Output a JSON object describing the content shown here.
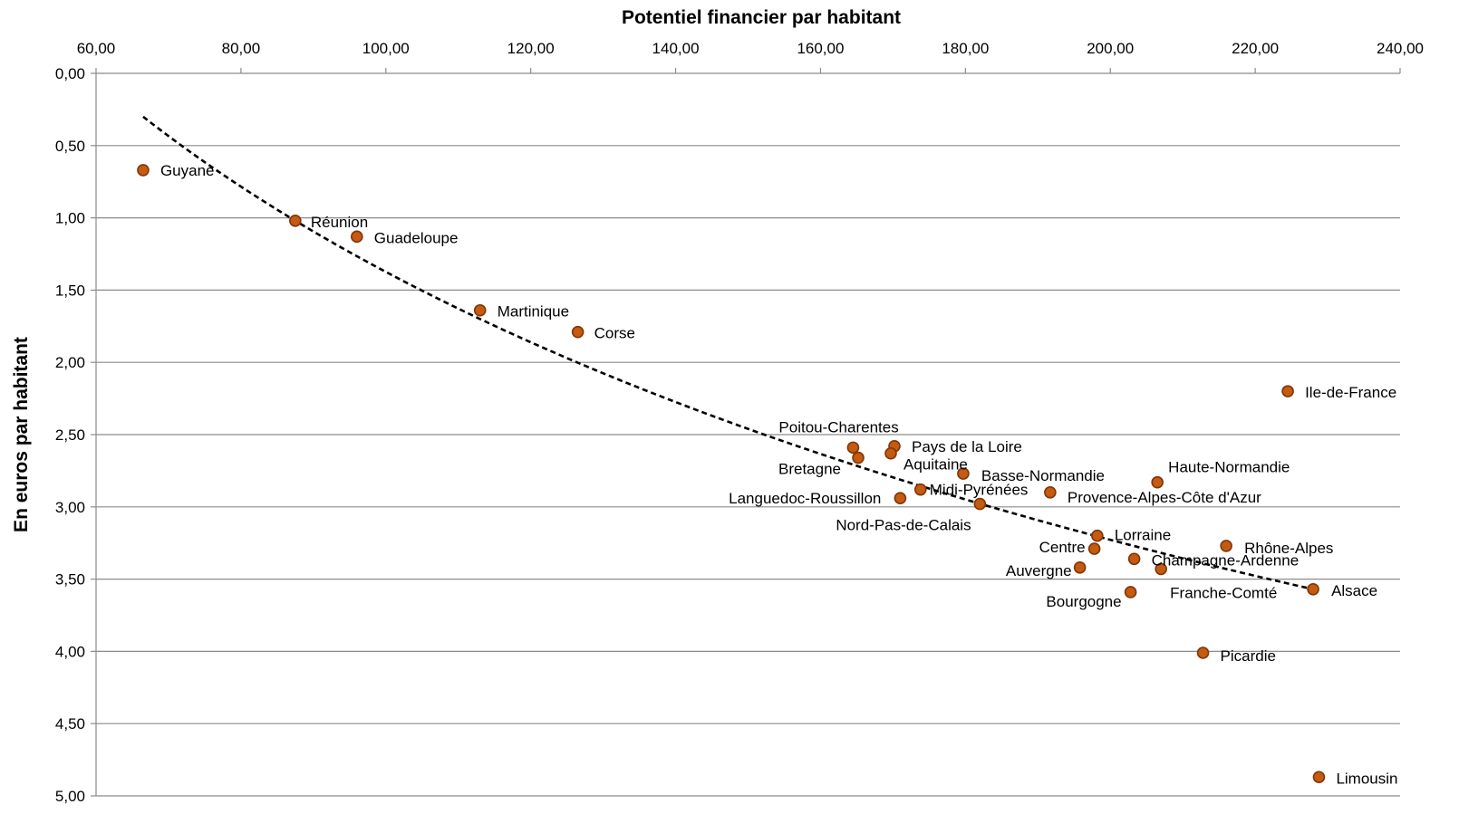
{
  "chart_data": {
    "type": "scatter",
    "xlabel": "Potentiel financier par habitant",
    "ylabel": "En euros par habitant",
    "xlim": [
      60,
      240
    ],
    "ylim": [
      0,
      5
    ],
    "x_ticks": [
      "60,00",
      "80,00",
      "100,00",
      "120,00",
      "140,00",
      "160,00",
      "180,00",
      "200,00",
      "220,00",
      "240,00"
    ],
    "y_ticks": [
      "0,00",
      "0,50",
      "1,00",
      "1,50",
      "2,00",
      "2,50",
      "3,00",
      "3,50",
      "4,00",
      "4,50",
      "5,00"
    ],
    "x_axis_position": "top",
    "y_axis_reversed": true,
    "grid": "horizontal",
    "marker_color": "#c55a11",
    "marker_edge_color": "#7f3608",
    "trendline": {
      "style": "dashed",
      "color": "#000000",
      "from": [
        66.5,
        0.3
      ],
      "to": [
        228,
        3.57
      ]
    },
    "points": [
      {
        "label": "Guyane",
        "x": 66.5,
        "y": 0.67
      },
      {
        "label": "Réunion",
        "x": 87.5,
        "y": 1.02
      },
      {
        "label": "Guadeloupe",
        "x": 96,
        "y": 1.13
      },
      {
        "label": "Martinique",
        "x": 113,
        "y": 1.64
      },
      {
        "label": "Corse",
        "x": 126.5,
        "y": 1.79
      },
      {
        "label": "Ile-de-France",
        "x": 224.5,
        "y": 2.2
      },
      {
        "label": "Poitou-Charentes",
        "x": 164.5,
        "y": 2.59
      },
      {
        "label": "Pays de la Loire",
        "x": 170.2,
        "y": 2.58
      },
      {
        "label": "Aquitaine",
        "x": 169.7,
        "y": 2.63
      },
      {
        "label": "Bretagne",
        "x": 165.2,
        "y": 2.66
      },
      {
        "label": "Basse-Normandie",
        "x": 179.7,
        "y": 2.77
      },
      {
        "label": "Haute-Normandie",
        "x": 206.5,
        "y": 2.83
      },
      {
        "label": "Midi-Pyrénées",
        "x": 173.8,
        "y": 2.88
      },
      {
        "label": "Provence-Alpes-Côte d'Azur",
        "x": 191.7,
        "y": 2.9
      },
      {
        "label": "Languedoc-Roussillon",
        "x": 171,
        "y": 2.94
      },
      {
        "label": "Nord-Pas-de-Calais",
        "x": 182,
        "y": 2.98
      },
      {
        "label": "Lorraine",
        "x": 198.2,
        "y": 3.2
      },
      {
        "label": "Rhône-Alpes",
        "x": 216,
        "y": 3.27
      },
      {
        "label": "Centre",
        "x": 197.8,
        "y": 3.29
      },
      {
        "label": "Champagne-Ardenne",
        "x": 203.3,
        "y": 3.36
      },
      {
        "label": "Auvergne",
        "x": 195.8,
        "y": 3.42
      },
      {
        "label": "Franche-Comté",
        "x": 207,
        "y": 3.43
      },
      {
        "label": "Alsace",
        "x": 228,
        "y": 3.57
      },
      {
        "label": "Bourgogne",
        "x": 202.8,
        "y": 3.59
      },
      {
        "label": "Picardie",
        "x": 212.8,
        "y": 4.01
      },
      {
        "label": "Limousin",
        "x": 228.8,
        "y": 4.87
      }
    ]
  }
}
